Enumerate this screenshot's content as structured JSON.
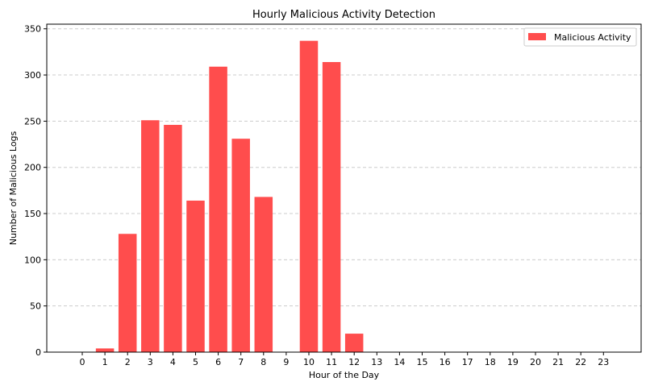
{
  "chart_data": {
    "type": "bar",
    "title": "Hourly Malicious Activity Detection",
    "xlabel": "Hour of the Day",
    "ylabel": "Number of Malicious Logs",
    "categories": [
      "0",
      "1",
      "2",
      "3",
      "4",
      "5",
      "6",
      "7",
      "8",
      "9",
      "10",
      "11",
      "12",
      "13",
      "14",
      "15",
      "16",
      "17",
      "18",
      "19",
      "20",
      "21",
      "22",
      "23"
    ],
    "series": [
      {
        "name": "Malicious Activity",
        "values": [
          0,
          4,
          128,
          251,
          246,
          164,
          309,
          231,
          168,
          0,
          337,
          314,
          20,
          0,
          0,
          0,
          0,
          0,
          0,
          0,
          0,
          0,
          0,
          0
        ]
      }
    ],
    "ylim": [
      0,
      355
    ],
    "yticks": [
      0,
      50,
      100,
      150,
      200,
      250,
      300,
      350
    ],
    "grid": "y-dashed",
    "legend_position": "top-right",
    "colors": {
      "bar": "#ff4d4d",
      "grid": "#cccccc"
    }
  }
}
